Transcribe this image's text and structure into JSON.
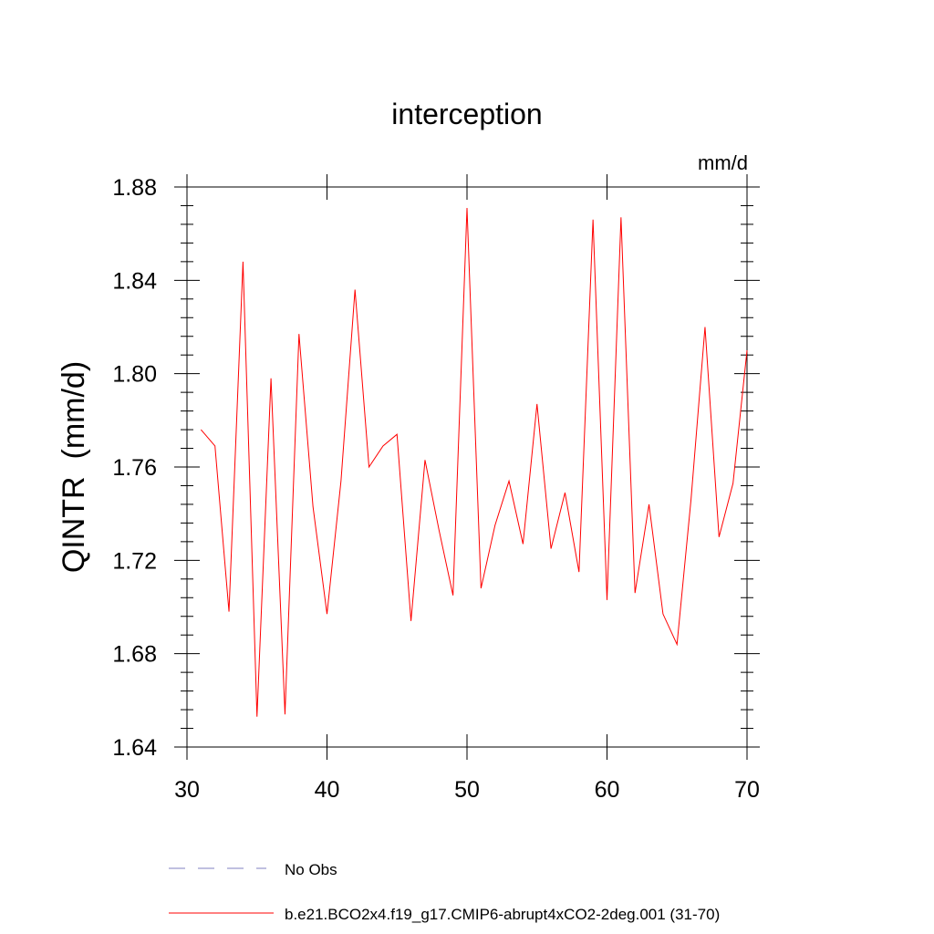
{
  "chart_data": {
    "type": "line",
    "title": "interception",
    "units": "mm/d",
    "xlabel": "",
    "ylabel": "QINTR  (mm/d)",
    "xlim": [
      30,
      70
    ],
    "ylim": [
      1.64,
      1.88
    ],
    "x_ticks": [
      30,
      40,
      50,
      60,
      70
    ],
    "x_tick_labels": [
      "30",
      "40",
      "50",
      "60",
      "70"
    ],
    "y_ticks": [
      1.64,
      1.68,
      1.72,
      1.76,
      1.8,
      1.84,
      1.88
    ],
    "y_tick_labels": [
      "1.64",
      "1.68",
      "1.72",
      "1.76",
      "1.80",
      "1.84",
      "1.88"
    ],
    "grid": false,
    "legend_position": "bottom-left",
    "series": [
      {
        "name": "No Obs",
        "color": "#8080c0",
        "style": "dashed",
        "x": [],
        "values": []
      },
      {
        "name": "b.e21.BCO2x4.f19_g17.CMIP6-abrupt4xCO2-2deg.001 (31-70)",
        "color": "#ff0000",
        "style": "solid",
        "x": [
          31,
          32,
          33,
          34,
          35,
          36,
          37,
          38,
          39,
          40,
          41,
          42,
          43,
          44,
          45,
          46,
          47,
          48,
          49,
          50,
          51,
          52,
          53,
          54,
          55,
          56,
          57,
          58,
          59,
          60,
          61,
          62,
          63,
          64,
          65,
          66,
          67,
          68,
          69,
          70
        ],
        "values": [
          1.776,
          1.769,
          1.698,
          1.848,
          1.653,
          1.798,
          1.654,
          1.817,
          1.743,
          1.697,
          1.754,
          1.836,
          1.76,
          1.769,
          1.774,
          1.694,
          1.763,
          1.733,
          1.705,
          1.871,
          1.708,
          1.735,
          1.754,
          1.727,
          1.787,
          1.725,
          1.749,
          1.715,
          1.866,
          1.703,
          1.867,
          1.706,
          1.744,
          1.697,
          1.684,
          1.746,
          1.82,
          1.73,
          1.753,
          1.81
        ]
      }
    ]
  }
}
